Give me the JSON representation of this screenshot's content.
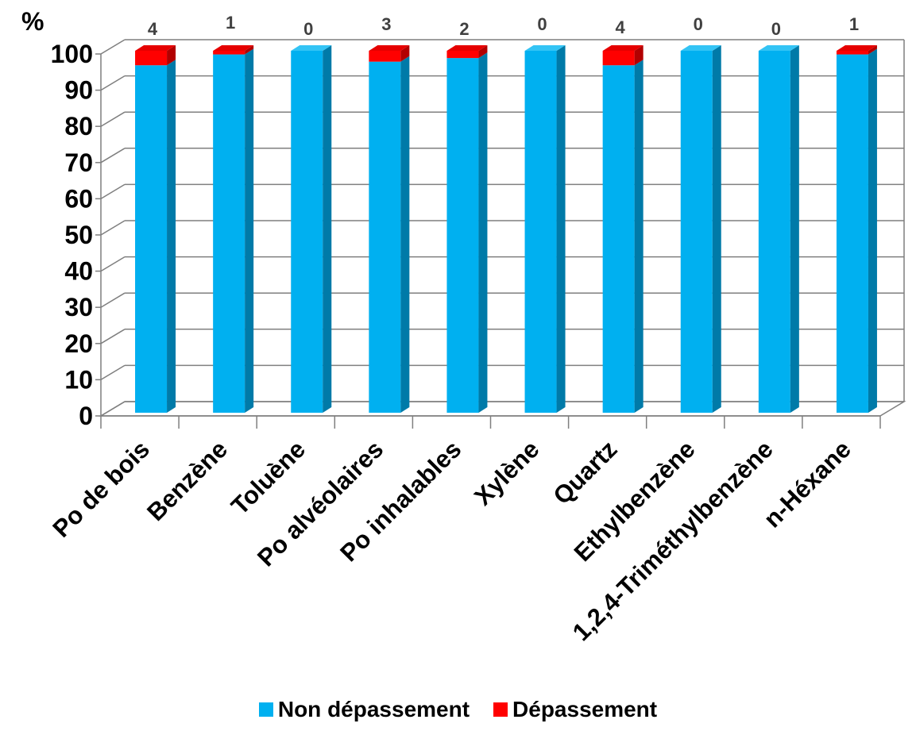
{
  "chart_data": {
    "type": "bar",
    "stacked": true,
    "three_d": true,
    "ylabel": "%",
    "ylim": [
      0,
      100
    ],
    "yticks": [
      0,
      10,
      20,
      30,
      40,
      50,
      60,
      70,
      80,
      90,
      100
    ],
    "grid": true,
    "categories": [
      "Po de bois",
      "Benzène",
      "Toluène",
      "Po alvéolaires",
      "Po inhalables",
      "Xylène",
      "Quartz",
      "Ethylbenzène",
      "1,2,4-Triméthylbenzène",
      "n-Héxane"
    ],
    "series": [
      {
        "name": "Non dépassement",
        "color": "#00b0f0",
        "values": [
          96,
          99,
          100,
          97,
          98,
          100,
          96,
          100,
          100,
          99
        ]
      },
      {
        "name": "Dépassement",
        "color": "#ff0000",
        "values": [
          4,
          1,
          0,
          3,
          2,
          0,
          4,
          0,
          0,
          1
        ]
      }
    ],
    "data_labels": [
      "4",
      "1",
      "0",
      "3",
      "2",
      "0",
      "4",
      "0",
      "0",
      "1"
    ],
    "legend_position": "bottom"
  }
}
